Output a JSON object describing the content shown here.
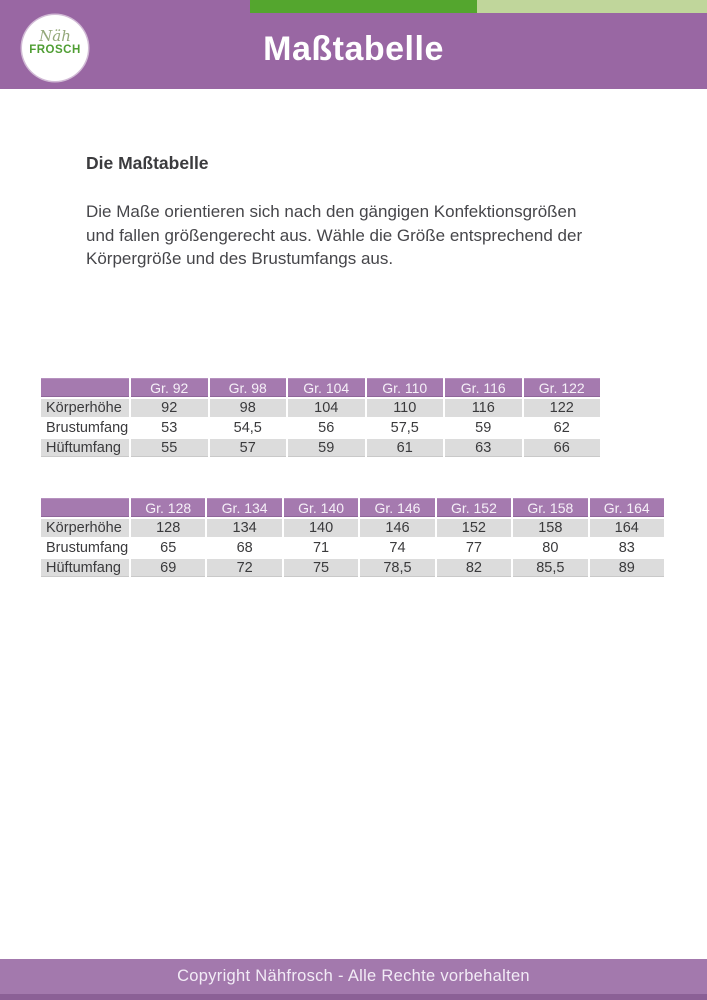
{
  "header": {
    "title": "Maßtabelle",
    "logo": {
      "line1": "Näh",
      "line2": "FROSCH"
    }
  },
  "content": {
    "heading": "Die Maßtabelle",
    "paragraph_lines": [
      "Die Maße orientieren sich nach den gängigen Konfektionsgrößen",
      "und fallen größengerecht aus. Wähle die Größe entsprechend der",
      "Körpergröße und des Brustumfangs aus."
    ]
  },
  "tables": [
    {
      "columns": [
        "",
        "Gr. 92",
        "Gr. 98",
        "Gr. 104",
        "Gr. 110",
        "Gr. 116",
        "Gr. 122"
      ],
      "rows": [
        {
          "label": "Körperhöhe",
          "values": [
            "92",
            "98",
            "104",
            "110",
            "116",
            "122"
          ]
        },
        {
          "label": "Brustumfang",
          "values": [
            "53",
            "54,5",
            "56",
            "57,5",
            "59",
            "62"
          ]
        },
        {
          "label": "Hüftumfang",
          "values": [
            "55",
            "57",
            "59",
            "61",
            "63",
            "66"
          ]
        }
      ]
    },
    {
      "columns": [
        "",
        "Gr. 128",
        "Gr. 134",
        "Gr. 140",
        "Gr. 146",
        "Gr. 152",
        "Gr. 158",
        "Gr. 164"
      ],
      "rows": [
        {
          "label": "Körperhöhe",
          "values": [
            "128",
            "134",
            "140",
            "146",
            "152",
            "158",
            "164"
          ]
        },
        {
          "label": "Brustumfang",
          "values": [
            "65",
            "68",
            "71",
            "74",
            "77",
            "80",
            "83"
          ]
        },
        {
          "label": "Hüftumfang",
          "values": [
            "69",
            "72",
            "75",
            "78,5",
            "82",
            "85,5",
            "89"
          ]
        }
      ]
    }
  ],
  "footer": {
    "text": "Copyright Nähfrosch - Alle Rechte vorbehalten"
  },
  "colors": {
    "banner_purple": "#9967a3",
    "table_header_purple": "#a57aaf",
    "row_stripe_gray": "#dcdcdc",
    "footer_purple": "#a379ad",
    "footer_dark_strip": "#8b6096",
    "accent_green_dark": "#54a62e",
    "accent_green_light": "#c0d69b",
    "logo_green": "#4f9e33",
    "text_dark": "#46464a"
  }
}
